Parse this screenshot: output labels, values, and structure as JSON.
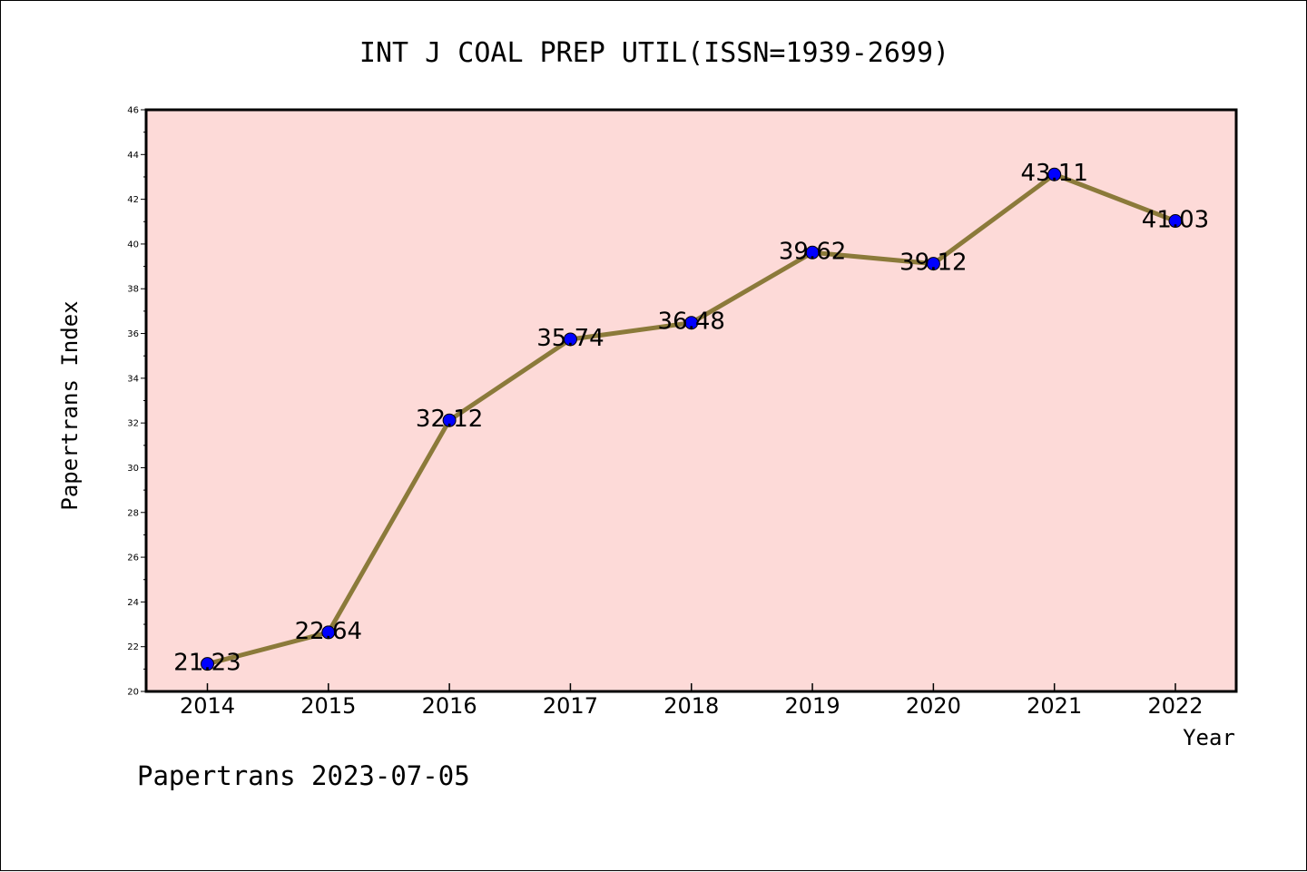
{
  "footer": "Papertrans 2023-07-05",
  "chart_data": {
    "type": "line",
    "title": "INT J COAL PREP UTIL(ISSN=1939-2699)",
    "xlabel": "Year",
    "ylabel": "Papertrans Index",
    "categories": [
      "2014",
      "2015",
      "2016",
      "2017",
      "2018",
      "2019",
      "2020",
      "2021",
      "2022"
    ],
    "series": [
      {
        "values": [
          21.23,
          22.64,
          32.12,
          35.74,
          36.48,
          39.62,
          39.12,
          43.11,
          41.03
        ],
        "data_labels": [
          "21.23",
          "22.64",
          "32.12",
          "35.74",
          "36.48",
          "39.62",
          "39.12",
          "43.11",
          "41.03"
        ],
        "line_color": "#8b7a3a",
        "marker_color": "#0000ff"
      }
    ],
    "ylim": [
      20,
      46
    ],
    "yticks": [
      "20",
      "22",
      "24",
      "26",
      "28",
      "30",
      "32",
      "34",
      "36",
      "38",
      "40",
      "42",
      "44",
      "46"
    ],
    "plot_background": "#fddad8",
    "grid": false,
    "legend": "none"
  }
}
